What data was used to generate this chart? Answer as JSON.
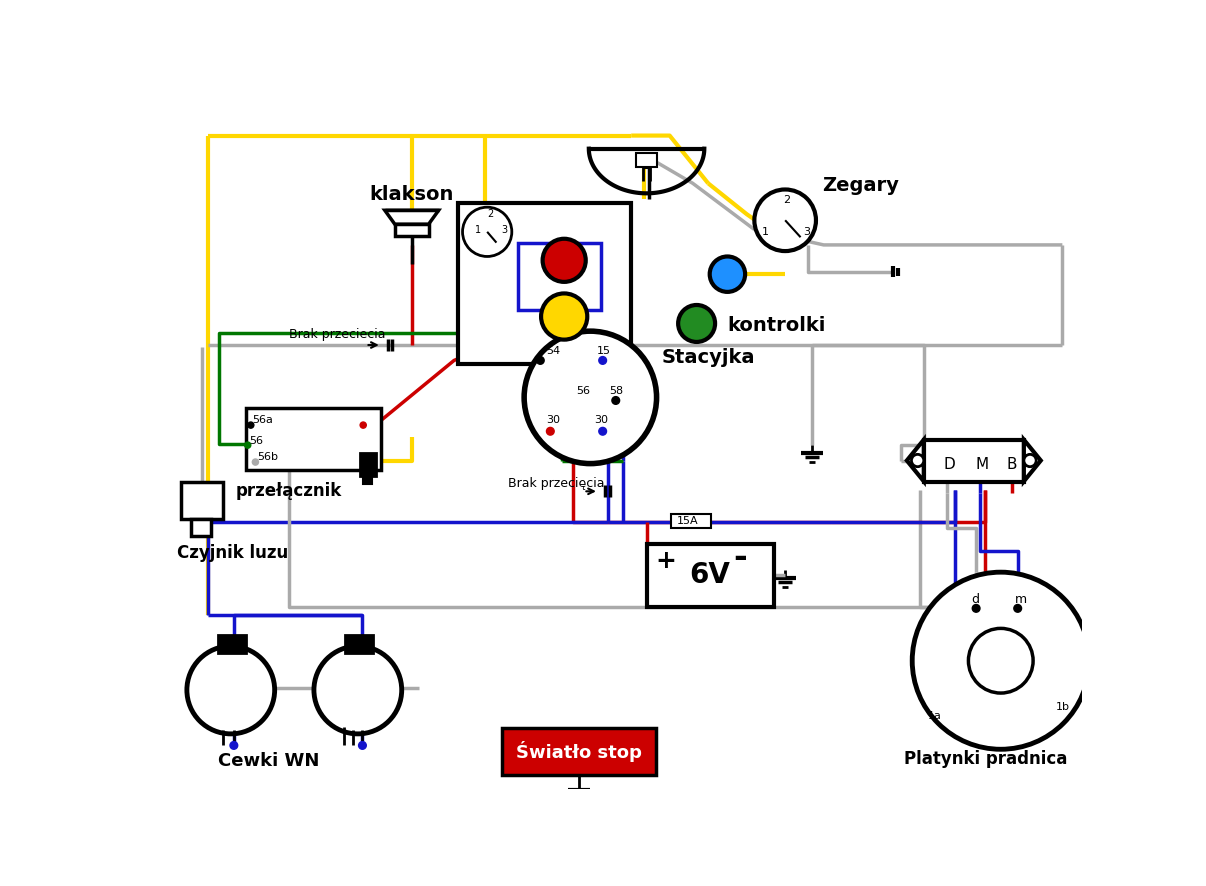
{
  "bg": "#ffffff",
  "Y": "#FFD700",
  "R": "#CC0000",
  "B": "#1414CC",
  "G": "#AAAAAA",
  "GR": "#007700",
  "BK": "#000000",
  "W": "#ffffff",
  "labels": {
    "klakson": "klakson",
    "zegary": "Zegary",
    "kontrolki": "kontrolki",
    "stacyjka": "Stacyjka",
    "przelacznik": "przełącznik",
    "czyjnik": "Czyjnik luzu",
    "cewki": "Cewki WN",
    "swiatlo": "Światło stop",
    "platynki": "Platynki pradnica",
    "6v": "6V"
  }
}
